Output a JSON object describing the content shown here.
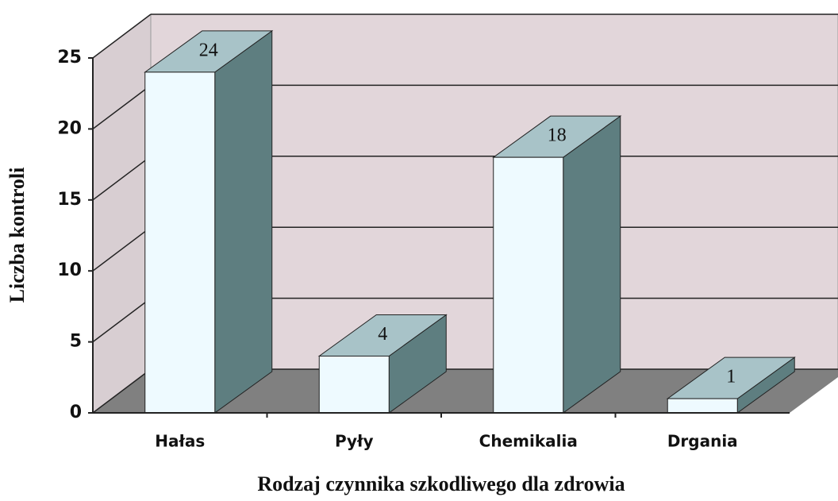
{
  "chart_data": {
    "type": "bar3d",
    "x_label": "Rodzaj czynnika szkodliwego dla zdrowia",
    "y_label": "Liczba kontroli",
    "categories": [
      "Hałas",
      "Pyły",
      "Chemikalia",
      "Drgania"
    ],
    "values": [
      24,
      4,
      18,
      1
    ],
    "ylim": [
      0,
      25
    ],
    "yticks": [
      0,
      5,
      10,
      15,
      20,
      25
    ],
    "grid": true,
    "color": "#eefaff"
  }
}
